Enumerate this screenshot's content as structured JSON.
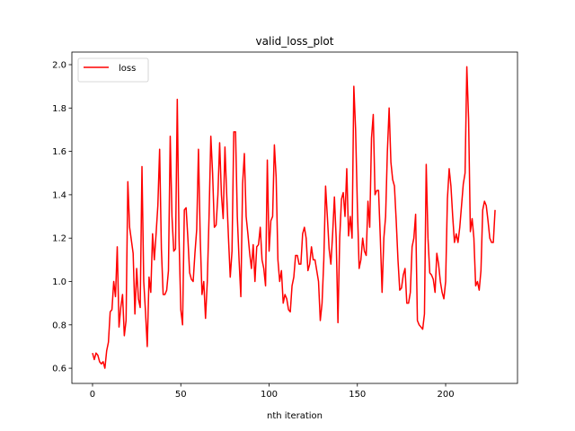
{
  "chart_data": {
    "type": "line",
    "title": "valid_loss_plot",
    "x_label": "nth iteration",
    "x": [
      0,
      1,
      2,
      3,
      4,
      5,
      6,
      7,
      8,
      9,
      10,
      11,
      12,
      13,
      14,
      15,
      16,
      17,
      18,
      19,
      20,
      21,
      22,
      23,
      24,
      25,
      26,
      27,
      28,
      29,
      30,
      31,
      32,
      33,
      34,
      35,
      36,
      37,
      38,
      39,
      40,
      41,
      42,
      43,
      44,
      45,
      46,
      47,
      48,
      49,
      50,
      51,
      52,
      53,
      54,
      55,
      56,
      57,
      58,
      59,
      60,
      61,
      62,
      63,
      64,
      65,
      66,
      67,
      68,
      69,
      70,
      71,
      72,
      73,
      74,
      75,
      76,
      77,
      78,
      79,
      80,
      81,
      82,
      83,
      84,
      85,
      86,
      87,
      88,
      89,
      90,
      91,
      92,
      93,
      94,
      95,
      96,
      97,
      98,
      99,
      100,
      101,
      102,
      103,
      104,
      105,
      106,
      107,
      108,
      109,
      110,
      111,
      112,
      113,
      114,
      115,
      116,
      117,
      118,
      119,
      120,
      121,
      122,
      123,
      124,
      125,
      126,
      127,
      128,
      129,
      130,
      131,
      132,
      133,
      134,
      135,
      136,
      137,
      138,
      139,
      140,
      141,
      142,
      143,
      144,
      145,
      146,
      147,
      148,
      149,
      150,
      151,
      152,
      153,
      154,
      155,
      156,
      157,
      158,
      159,
      160,
      161,
      162,
      163,
      164,
      165,
      166,
      167,
      168,
      169,
      170,
      171,
      172,
      173,
      174,
      175,
      176,
      177,
      178,
      179,
      180,
      181,
      182,
      183,
      184,
      185,
      186,
      187,
      188,
      189,
      190,
      191,
      192,
      193,
      194,
      195,
      196,
      197,
      198,
      199,
      200,
      201,
      202,
      203,
      204,
      205,
      206,
      207,
      208,
      209,
      210,
      211,
      212,
      213,
      214,
      215,
      216,
      217,
      218,
      219,
      220,
      221,
      222,
      223,
      224,
      225,
      226,
      227,
      228
    ],
    "series": [
      {
        "name": "loss",
        "color": "#ff0000",
        "values": [
          0.67,
          0.64,
          0.67,
          0.66,
          0.63,
          0.62,
          0.63,
          0.6,
          0.68,
          0.72,
          0.86,
          0.87,
          1.0,
          0.93,
          1.16,
          0.79,
          0.88,
          0.94,
          0.75,
          0.82,
          1.46,
          1.25,
          1.19,
          1.13,
          0.85,
          1.06,
          0.92,
          0.88,
          1.53,
          1.0,
          0.86,
          0.7,
          1.02,
          0.95,
          1.22,
          1.1,
          1.22,
          1.35,
          1.61,
          1.15,
          0.94,
          0.94,
          0.96,
          1.05,
          1.67,
          1.3,
          1.14,
          1.15,
          1.84,
          1.2,
          0.87,
          0.8,
          1.33,
          1.34,
          1.2,
          1.04,
          1.01,
          1.0,
          1.13,
          1.24,
          1.61,
          1.2,
          0.94,
          1.0,
          0.83,
          1.0,
          1.3,
          1.67,
          1.5,
          1.25,
          1.26,
          1.4,
          1.64,
          1.4,
          1.29,
          1.62,
          1.4,
          1.2,
          1.02,
          1.14,
          1.69,
          1.69,
          1.3,
          1.1,
          0.93,
          1.45,
          1.59,
          1.3,
          1.22,
          1.13,
          1.06,
          1.17,
          1.0,
          1.16,
          1.17,
          1.25,
          1.1,
          1.06,
          0.98,
          1.56,
          1.14,
          1.28,
          1.3,
          1.63,
          1.48,
          1.1,
          1.0,
          1.05,
          0.9,
          0.94,
          0.92,
          0.87,
          0.86,
          0.98,
          1.02,
          1.12,
          1.12,
          1.08,
          1.08,
          1.22,
          1.25,
          1.2,
          1.05,
          1.08,
          1.16,
          1.1,
          1.1,
          1.05,
          1.0,
          0.82,
          0.9,
          1.1,
          1.44,
          1.3,
          1.15,
          1.08,
          1.22,
          1.39,
          1.2,
          0.81,
          1.2,
          1.38,
          1.41,
          1.3,
          1.52,
          1.21,
          1.3,
          1.2,
          1.9,
          1.7,
          1.35,
          1.06,
          1.1,
          1.2,
          1.14,
          1.12,
          1.37,
          1.25,
          1.66,
          1.77,
          1.4,
          1.42,
          1.42,
          1.2,
          0.95,
          1.2,
          1.3,
          1.6,
          1.8,
          1.55,
          1.47,
          1.44,
          1.28,
          1.1,
          0.96,
          0.97,
          1.03,
          1.06,
          0.9,
          0.9,
          0.95,
          1.16,
          1.2,
          1.31,
          0.82,
          0.8,
          0.79,
          0.78,
          0.85,
          1.54,
          1.2,
          1.04,
          1.03,
          1.01,
          0.95,
          1.13,
          1.08,
          1.0,
          0.95,
          0.92,
          1.0,
          1.38,
          1.52,
          1.44,
          1.3,
          1.18,
          1.22,
          1.18,
          1.25,
          1.35,
          1.45,
          1.5,
          1.99,
          1.75,
          1.23,
          1.29,
          1.2,
          0.98,
          1.0,
          0.96,
          1.05,
          1.33,
          1.37,
          1.35,
          1.28,
          1.2,
          1.18,
          1.18,
          1.33
        ]
      }
    ],
    "xlim": [
      -11.7,
      240.7
    ],
    "ylim": [
      0.53,
      2.058
    ],
    "xticks": [
      0,
      50,
      100,
      150,
      200
    ],
    "yticks": [
      {
        "value": 0.6,
        "label": "0.6"
      },
      {
        "value": 0.8,
        "label": "0.8"
      },
      {
        "value": 1,
        "label": "1.0"
      },
      {
        "value": 1.2,
        "label": "1.2"
      },
      {
        "value": 1.4,
        "label": "1.4"
      },
      {
        "value": 1.6,
        "label": "1.6"
      },
      {
        "value": 1.8,
        "label": "1.8"
      },
      {
        "value": 2,
        "label": "2.0"
      }
    ],
    "legend": "upper left",
    "grid": false
  }
}
